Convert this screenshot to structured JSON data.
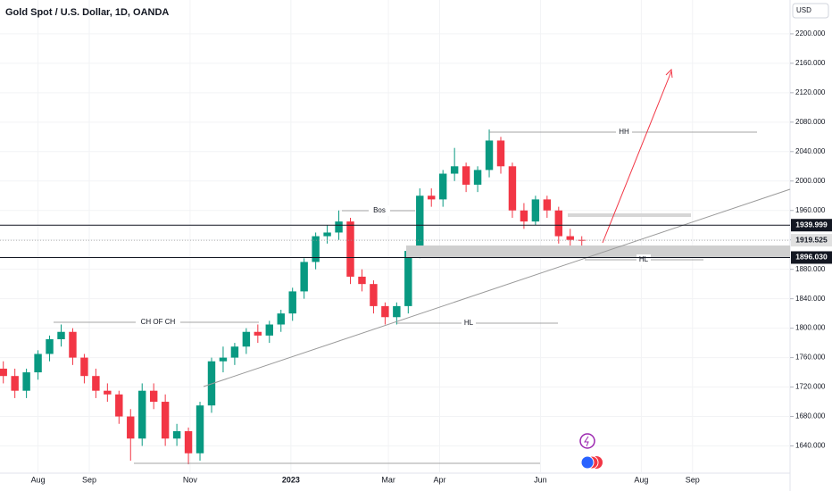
{
  "chart_data": {
    "type": "candlestick",
    "title": "Gold Spot / U.S. Dollar, 1D, OANDA",
    "currency": "USD",
    "x": [
      10,
      17,
      24,
      31,
      38,
      45,
      52,
      59,
      66,
      73,
      80,
      87,
      94,
      101,
      108,
      115,
      122,
      129,
      136,
      143,
      150,
      157,
      164,
      171,
      178,
      185,
      192,
      199,
      206,
      213,
      220,
      227,
      234,
      241,
      248,
      255,
      262,
      269,
      276,
      283,
      290,
      297,
      304,
      311,
      318,
      325,
      332,
      339,
      346,
      353,
      360
    ],
    "open": [
      1745,
      1735,
      1715,
      1740,
      1765,
      1785,
      1795,
      1760,
      1735,
      1715,
      1710,
      1680,
      1650,
      1715,
      1700,
      1650,
      1660,
      1630,
      1695,
      1755,
      1760,
      1775,
      1795,
      1790,
      1805,
      1820,
      1850,
      1890,
      1925,
      1930,
      1945,
      1870,
      1860,
      1830,
      1815,
      1830,
      1905,
      1980,
      1975,
      2010,
      2020,
      1995,
      2015,
      2055,
      2020,
      1960,
      1945,
      1975,
      1960,
      1925,
      1920
    ],
    "high": [
      1755,
      1745,
      1745,
      1770,
      1790,
      1805,
      1800,
      1765,
      1745,
      1725,
      1715,
      1690,
      1725,
      1725,
      1710,
      1670,
      1665,
      1700,
      1760,
      1775,
      1780,
      1800,
      1805,
      1810,
      1825,
      1855,
      1895,
      1930,
      1940,
      1960,
      1950,
      1880,
      1865,
      1835,
      1835,
      1910,
      1990,
      1990,
      2015,
      2045,
      2025,
      2020,
      2070,
      2060,
      2025,
      1970,
      1980,
      1980,
      1965,
      1935,
      1925
    ],
    "low": [
      1725,
      1705,
      1705,
      1730,
      1755,
      1775,
      1750,
      1725,
      1705,
      1700,
      1670,
      1620,
      1640,
      1690,
      1640,
      1640,
      1615,
      1620,
      1685,
      1740,
      1750,
      1765,
      1780,
      1780,
      1795,
      1810,
      1840,
      1880,
      1915,
      1920,
      1860,
      1850,
      1820,
      1805,
      1805,
      1820,
      1895,
      1965,
      1965,
      2000,
      1985,
      1985,
      2005,
      2010,
      1950,
      1935,
      1940,
      1950,
      1915,
      1905,
      1905
    ],
    "close": [
      1735,
      1715,
      1740,
      1765,
      1785,
      1795,
      1760,
      1735,
      1715,
      1710,
      1680,
      1650,
      1715,
      1700,
      1650,
      1660,
      1630,
      1695,
      1755,
      1760,
      1775,
      1795,
      1790,
      1805,
      1820,
      1850,
      1890,
      1925,
      1930,
      1945,
      1870,
      1860,
      1830,
      1815,
      1830,
      1905,
      1980,
      1975,
      2010,
      2020,
      1995,
      2015,
      2055,
      2020,
      1960,
      1945,
      1975,
      1960,
      1925,
      1920,
      1919.525
    ],
    "up_color": "#089981",
    "down_color": "#f23645",
    "xlim": [
      8,
      486
    ],
    "xticks": [
      {
        "value": 31,
        "label": "Aug"
      },
      {
        "value": 62,
        "label": "Sep"
      },
      {
        "value": 123,
        "label": "Nov"
      },
      {
        "value": 184,
        "label": "2023"
      },
      {
        "value": 243,
        "label": "Mar"
      },
      {
        "value": 274,
        "label": "Apr"
      },
      {
        "value": 335,
        "label": "Jun"
      },
      {
        "value": 396,
        "label": "Aug"
      },
      {
        "value": 427,
        "label": "Sep"
      }
    ],
    "ylim": [
      1603,
      2246
    ],
    "yticks": [
      {
        "value": 1640,
        "label": "1640.000"
      },
      {
        "value": 1680,
        "label": "1680.000"
      },
      {
        "value": 1720,
        "label": "1720.000"
      },
      {
        "value": 1760,
        "label": "1760.000"
      },
      {
        "value": 1800,
        "label": "1800.000"
      },
      {
        "value": 1840,
        "label": "1840.000"
      },
      {
        "value": 1880,
        "label": "1880.000"
      },
      {
        "value": 1920,
        "label": "1920.000"
      },
      {
        "value": 1960,
        "label": "1960.000"
      },
      {
        "value": 2000,
        "label": "2000.000"
      },
      {
        "value": 2040,
        "label": "2040.000"
      },
      {
        "value": 2080,
        "label": "2080.000"
      },
      {
        "value": 2120,
        "label": "2120.000"
      },
      {
        "value": 2160,
        "label": "2160.000"
      },
      {
        "value": 2200,
        "label": "2200.000"
      }
    ],
    "price_lines": [
      {
        "value": 1939.999,
        "label": "1939.999"
      },
      {
        "value": 1919.525,
        "label": "1919.525"
      },
      {
        "value": 1896.03,
        "label": "1896.030"
      }
    ],
    "annotations": [
      "HH",
      "Bos",
      "CH OF CH",
      "HL",
      "HL"
    ]
  }
}
